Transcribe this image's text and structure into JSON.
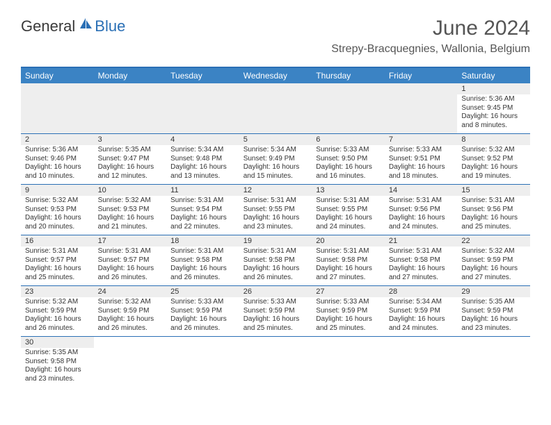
{
  "logo": {
    "text1": "General",
    "text2": "Blue"
  },
  "title": "June 2024",
  "location": "Strepy-Bracquegnies, Wallonia, Belgium",
  "colors": {
    "header_bg": "#3b83c4",
    "border": "#2a6fb5",
    "row_stripe": "#eeeeee",
    "text": "#333333"
  },
  "daynames": [
    "Sunday",
    "Monday",
    "Tuesday",
    "Wednesday",
    "Thursday",
    "Friday",
    "Saturday"
  ],
  "weeks": [
    [
      null,
      null,
      null,
      null,
      null,
      null,
      {
        "n": "1",
        "sr": "Sunrise: 5:36 AM",
        "ss": "Sunset: 9:45 PM",
        "d1": "Daylight: 16 hours",
        "d2": "and 8 minutes."
      }
    ],
    [
      {
        "n": "2",
        "sr": "Sunrise: 5:36 AM",
        "ss": "Sunset: 9:46 PM",
        "d1": "Daylight: 16 hours",
        "d2": "and 10 minutes."
      },
      {
        "n": "3",
        "sr": "Sunrise: 5:35 AM",
        "ss": "Sunset: 9:47 PM",
        "d1": "Daylight: 16 hours",
        "d2": "and 12 minutes."
      },
      {
        "n": "4",
        "sr": "Sunrise: 5:34 AM",
        "ss": "Sunset: 9:48 PM",
        "d1": "Daylight: 16 hours",
        "d2": "and 13 minutes."
      },
      {
        "n": "5",
        "sr": "Sunrise: 5:34 AM",
        "ss": "Sunset: 9:49 PM",
        "d1": "Daylight: 16 hours",
        "d2": "and 15 minutes."
      },
      {
        "n": "6",
        "sr": "Sunrise: 5:33 AM",
        "ss": "Sunset: 9:50 PM",
        "d1": "Daylight: 16 hours",
        "d2": "and 16 minutes."
      },
      {
        "n": "7",
        "sr": "Sunrise: 5:33 AM",
        "ss": "Sunset: 9:51 PM",
        "d1": "Daylight: 16 hours",
        "d2": "and 18 minutes."
      },
      {
        "n": "8",
        "sr": "Sunrise: 5:32 AM",
        "ss": "Sunset: 9:52 PM",
        "d1": "Daylight: 16 hours",
        "d2": "and 19 minutes."
      }
    ],
    [
      {
        "n": "9",
        "sr": "Sunrise: 5:32 AM",
        "ss": "Sunset: 9:53 PM",
        "d1": "Daylight: 16 hours",
        "d2": "and 20 minutes."
      },
      {
        "n": "10",
        "sr": "Sunrise: 5:32 AM",
        "ss": "Sunset: 9:53 PM",
        "d1": "Daylight: 16 hours",
        "d2": "and 21 minutes."
      },
      {
        "n": "11",
        "sr": "Sunrise: 5:31 AM",
        "ss": "Sunset: 9:54 PM",
        "d1": "Daylight: 16 hours",
        "d2": "and 22 minutes."
      },
      {
        "n": "12",
        "sr": "Sunrise: 5:31 AM",
        "ss": "Sunset: 9:55 PM",
        "d1": "Daylight: 16 hours",
        "d2": "and 23 minutes."
      },
      {
        "n": "13",
        "sr": "Sunrise: 5:31 AM",
        "ss": "Sunset: 9:55 PM",
        "d1": "Daylight: 16 hours",
        "d2": "and 24 minutes."
      },
      {
        "n": "14",
        "sr": "Sunrise: 5:31 AM",
        "ss": "Sunset: 9:56 PM",
        "d1": "Daylight: 16 hours",
        "d2": "and 24 minutes."
      },
      {
        "n": "15",
        "sr": "Sunrise: 5:31 AM",
        "ss": "Sunset: 9:56 PM",
        "d1": "Daylight: 16 hours",
        "d2": "and 25 minutes."
      }
    ],
    [
      {
        "n": "16",
        "sr": "Sunrise: 5:31 AM",
        "ss": "Sunset: 9:57 PM",
        "d1": "Daylight: 16 hours",
        "d2": "and 25 minutes."
      },
      {
        "n": "17",
        "sr": "Sunrise: 5:31 AM",
        "ss": "Sunset: 9:57 PM",
        "d1": "Daylight: 16 hours",
        "d2": "and 26 minutes."
      },
      {
        "n": "18",
        "sr": "Sunrise: 5:31 AM",
        "ss": "Sunset: 9:58 PM",
        "d1": "Daylight: 16 hours",
        "d2": "and 26 minutes."
      },
      {
        "n": "19",
        "sr": "Sunrise: 5:31 AM",
        "ss": "Sunset: 9:58 PM",
        "d1": "Daylight: 16 hours",
        "d2": "and 26 minutes."
      },
      {
        "n": "20",
        "sr": "Sunrise: 5:31 AM",
        "ss": "Sunset: 9:58 PM",
        "d1": "Daylight: 16 hours",
        "d2": "and 27 minutes."
      },
      {
        "n": "21",
        "sr": "Sunrise: 5:31 AM",
        "ss": "Sunset: 9:58 PM",
        "d1": "Daylight: 16 hours",
        "d2": "and 27 minutes."
      },
      {
        "n": "22",
        "sr": "Sunrise: 5:32 AM",
        "ss": "Sunset: 9:59 PM",
        "d1": "Daylight: 16 hours",
        "d2": "and 27 minutes."
      }
    ],
    [
      {
        "n": "23",
        "sr": "Sunrise: 5:32 AM",
        "ss": "Sunset: 9:59 PM",
        "d1": "Daylight: 16 hours",
        "d2": "and 26 minutes."
      },
      {
        "n": "24",
        "sr": "Sunrise: 5:32 AM",
        "ss": "Sunset: 9:59 PM",
        "d1": "Daylight: 16 hours",
        "d2": "and 26 minutes."
      },
      {
        "n": "25",
        "sr": "Sunrise: 5:33 AM",
        "ss": "Sunset: 9:59 PM",
        "d1": "Daylight: 16 hours",
        "d2": "and 26 minutes."
      },
      {
        "n": "26",
        "sr": "Sunrise: 5:33 AM",
        "ss": "Sunset: 9:59 PM",
        "d1": "Daylight: 16 hours",
        "d2": "and 25 minutes."
      },
      {
        "n": "27",
        "sr": "Sunrise: 5:33 AM",
        "ss": "Sunset: 9:59 PM",
        "d1": "Daylight: 16 hours",
        "d2": "and 25 minutes."
      },
      {
        "n": "28",
        "sr": "Sunrise: 5:34 AM",
        "ss": "Sunset: 9:59 PM",
        "d1": "Daylight: 16 hours",
        "d2": "and 24 minutes."
      },
      {
        "n": "29",
        "sr": "Sunrise: 5:35 AM",
        "ss": "Sunset: 9:59 PM",
        "d1": "Daylight: 16 hours",
        "d2": "and 23 minutes."
      }
    ],
    [
      {
        "n": "30",
        "sr": "Sunrise: 5:35 AM",
        "ss": "Sunset: 9:58 PM",
        "d1": "Daylight: 16 hours",
        "d2": "and 23 minutes."
      },
      null,
      null,
      null,
      null,
      null,
      null
    ]
  ]
}
